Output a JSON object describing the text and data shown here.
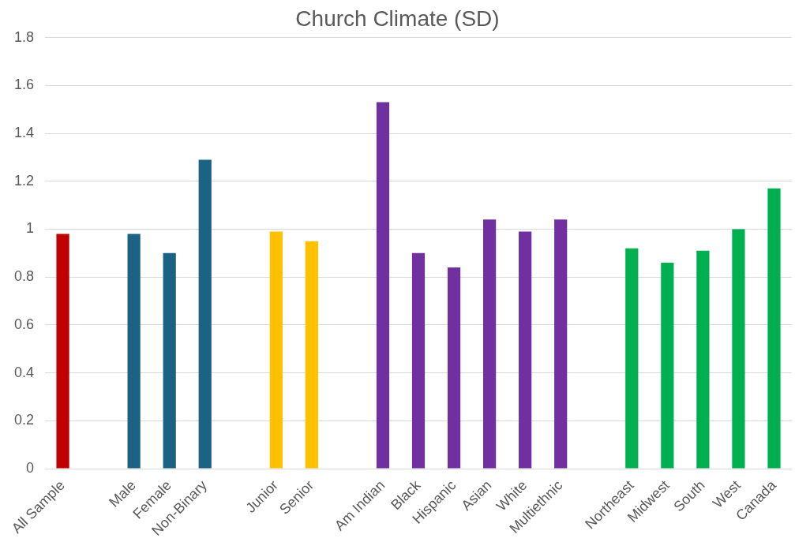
{
  "chart_data": {
    "type": "bar",
    "title": "Church Climate (SD)",
    "categories": [
      "All Sample",
      null,
      "Male",
      "Female",
      "Non-Binary",
      null,
      "Junior",
      "Senior",
      null,
      "Am Indian",
      "Black",
      "Hispanic",
      "Asian",
      "White",
      "Multiethnic",
      null,
      "Northeast",
      "Midwest",
      "South",
      "West",
      "Canada"
    ],
    "values": [
      0.98,
      null,
      0.98,
      0.9,
      1.29,
      null,
      0.99,
      0.95,
      null,
      1.53,
      0.9,
      0.84,
      1.04,
      0.99,
      1.04,
      null,
      0.92,
      0.86,
      0.91,
      1.0,
      1.17
    ],
    "colors": [
      "#c00000",
      null,
      "#1b6283",
      "#1b6283",
      "#1b6283",
      null,
      "#ffc000",
      "#ffc000",
      null,
      "#7030a0",
      "#7030a0",
      "#7030a0",
      "#7030a0",
      "#7030a0",
      "#7030a0",
      null,
      "#00b050",
      "#00b050",
      "#00b050",
      "#00b050",
      "#00b050"
    ],
    "ylim": [
      0,
      1.8
    ],
    "yticks": [
      0,
      0.2,
      0.4,
      0.6,
      0.8,
      1,
      1.2,
      1.4,
      1.6,
      1.8
    ],
    "grid": "y",
    "legend": false
  }
}
